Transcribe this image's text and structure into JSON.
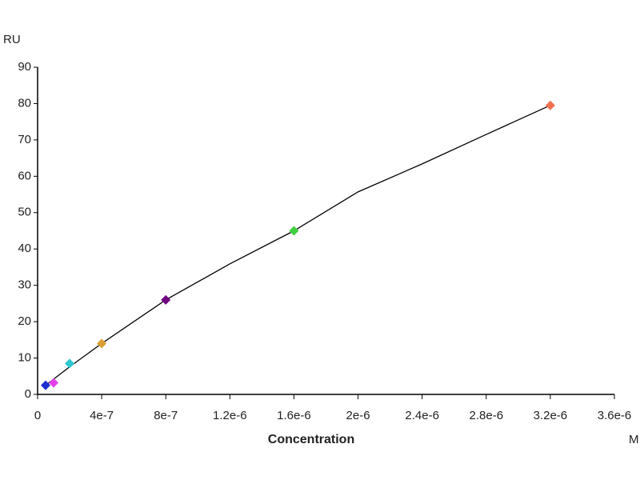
{
  "chart_data": {
    "type": "scatter",
    "y_label": "RU",
    "x_label": "Concentration",
    "x_unit": "M",
    "x": [
      5e-08,
      1e-07,
      2e-07,
      4e-07,
      8e-07,
      1.6e-06,
      3.2e-06
    ],
    "values": [
      2.5,
      3.2,
      8.5,
      14,
      26,
      45,
      79.5
    ],
    "colors": [
      "#1f2fd0",
      "#e040e8",
      "#30c8d0",
      "#d8a030",
      "#700080",
      "#40d040",
      "#f07050"
    ],
    "fit": {
      "color": "#000000",
      "x": [
        5e-08,
        2e-07,
        4e-07,
        8e-07,
        1.2e-06,
        1.6e-06,
        2e-06,
        2.4e-06,
        2.8e-06,
        3.2e-06
      ],
      "values": [
        2.5,
        7.6,
        14,
        26,
        35.9,
        45,
        55.7,
        63.4,
        71.5,
        79.5
      ]
    },
    "xlim": [
      0,
      3.6e-06
    ],
    "xticks": [
      0,
      {
        "value": 4e-07,
        "label": "4e-7"
      },
      {
        "value": 8e-07,
        "label": "8e-7"
      },
      {
        "value": 1.2e-06,
        "label": "1.2e-6"
      },
      {
        "value": 1.6e-06,
        "label": "1.6e-6"
      },
      {
        "value": 2e-06,
        "label": "2e-6"
      },
      {
        "value": 2.4e-06,
        "label": "2.4e-6"
      },
      {
        "value": 2.8e-06,
        "label": "2.8e-6"
      },
      {
        "value": 3.2e-06,
        "label": "3.2e-6"
      },
      {
        "value": 3.6e-06,
        "label": "3.6e-6"
      }
    ],
    "ylim": [
      0,
      90
    ],
    "yticks": [
      0,
      10,
      20,
      30,
      40,
      50,
      60,
      70,
      80,
      90
    ]
  }
}
